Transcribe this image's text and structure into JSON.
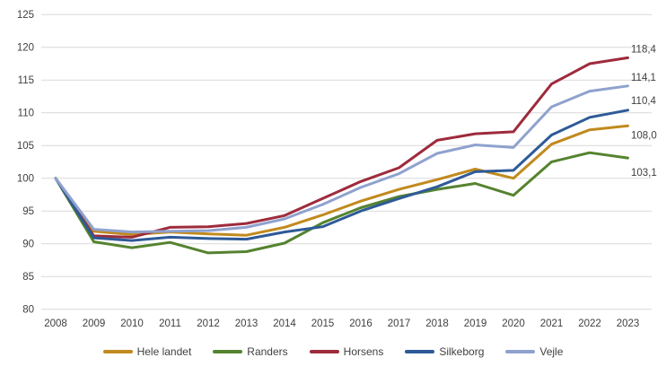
{
  "chart_data": {
    "type": "line",
    "title": "",
    "xlabel": "",
    "ylabel": "",
    "categories": [
      "2008",
      "2009",
      "2010",
      "2011",
      "2012",
      "2013",
      "2014",
      "2015",
      "2016",
      "2017",
      "2018",
      "2019",
      "2020",
      "2021",
      "2022",
      "2023"
    ],
    "series": [
      {
        "name": "Hele landet",
        "color": "#C18A1E",
        "end_label": "108,0",
        "values": [
          100,
          91.9,
          91.4,
          91.8,
          91.5,
          91.3,
          92.5,
          94.4,
          96.5,
          98.3,
          99.8,
          101.4,
          100.0,
          105.2,
          107.4,
          108.0
        ]
      },
      {
        "name": "Randers",
        "color": "#55832F",
        "end_label": "103,1",
        "values": [
          100,
          90.3,
          89.4,
          90.2,
          88.6,
          88.8,
          90.1,
          93.2,
          95.5,
          97.2,
          98.3,
          99.2,
          97.4,
          102.5,
          103.9,
          103.1
        ]
      },
      {
        "name": "Horsens",
        "color": "#9E2B3C",
        "end_label": "118,4",
        "values": [
          100,
          91.2,
          91.0,
          92.5,
          92.6,
          93.1,
          94.3,
          96.9,
          99.5,
          101.6,
          105.8,
          106.8,
          107.1,
          114.4,
          117.5,
          118.4
        ]
      },
      {
        "name": "Silkeborg",
        "color": "#2E5A97",
        "end_label": "110,4",
        "values": [
          100,
          90.9,
          90.5,
          91.0,
          90.8,
          90.7,
          91.8,
          92.6,
          95.0,
          96.9,
          98.7,
          101.0,
          101.2,
          106.6,
          109.3,
          110.4
        ]
      },
      {
        "name": "Vejle",
        "color": "#8FA2CE",
        "end_label": "114,1",
        "values": [
          100,
          92.2,
          91.8,
          91.9,
          92.0,
          92.5,
          93.8,
          96.0,
          98.6,
          100.7,
          103.8,
          105.1,
          104.7,
          110.9,
          113.3,
          114.1
        ]
      }
    ],
    "ylim": [
      80,
      125
    ],
    "ytick_step": 5,
    "y_ticks": [
      "125",
      "120",
      "115",
      "110",
      "105",
      "100",
      "95",
      "90",
      "85",
      "80"
    ],
    "grid": true,
    "legend_position": "bottom",
    "gridline_color": "#D9D9D9",
    "axis_text_color": "#404040"
  }
}
